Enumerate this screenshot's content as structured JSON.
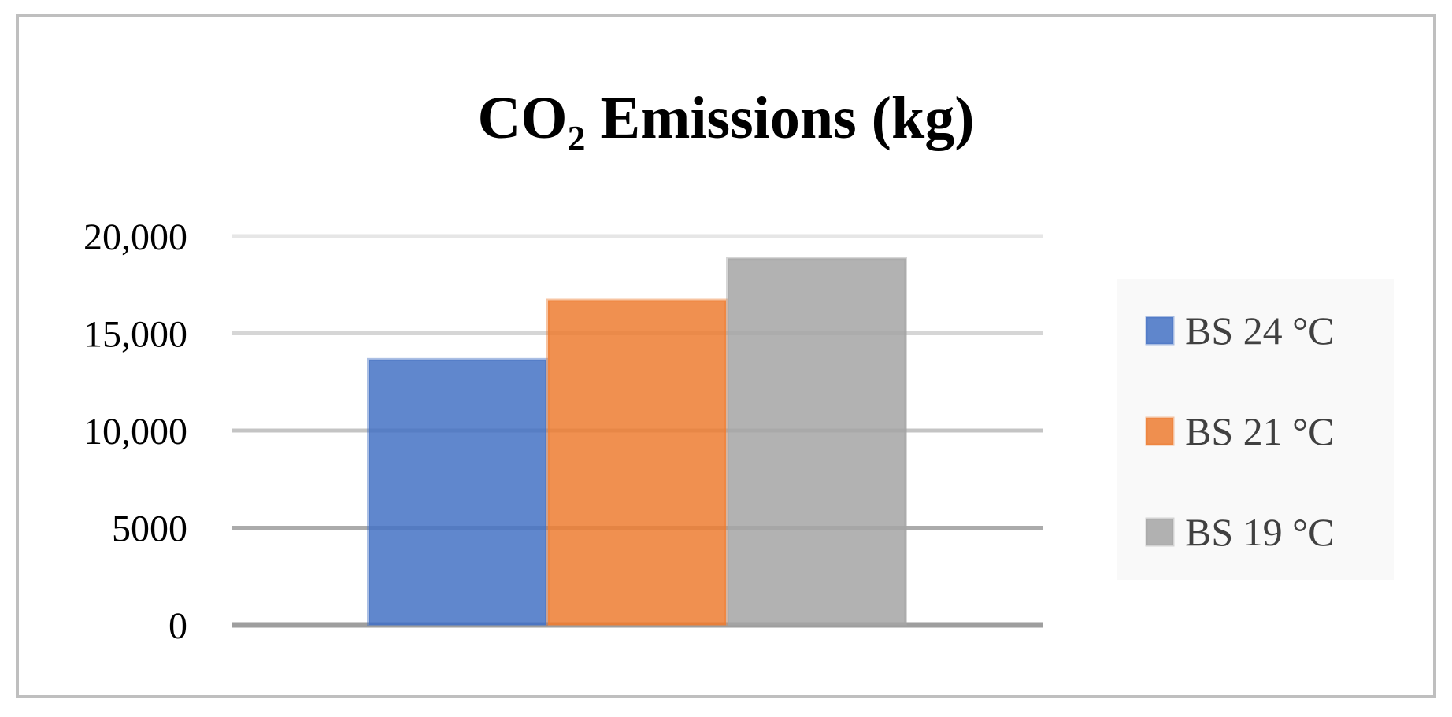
{
  "chart_data": {
    "type": "bar",
    "title": {
      "prefix": "CO",
      "subscript": "2",
      "suffix": " Emissions (kg)"
    },
    "xlabel": "",
    "ylabel": "",
    "ylim": [
      0,
      20000
    ],
    "yticks": [
      0,
      5000,
      10000,
      15000,
      20000
    ],
    "ytick_labels": [
      "0",
      "5000",
      "10,000",
      "15,000",
      "20,000"
    ],
    "grid": true,
    "legend_position": "right",
    "series": [
      {
        "name": "BS 24 °C",
        "value": 13650,
        "color": "#4472C4"
      },
      {
        "name": "BS 21 °C",
        "value": 16700,
        "color": "#ED7D31"
      },
      {
        "name": "BS 19 °C",
        "value": 18850,
        "color": "#A5A5A5"
      }
    ]
  }
}
